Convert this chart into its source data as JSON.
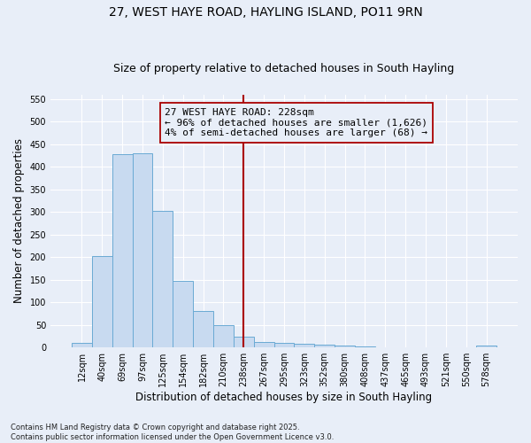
{
  "title1": "27, WEST HAYE ROAD, HAYLING ISLAND, PO11 9RN",
  "title2": "Size of property relative to detached houses in South Hayling",
  "xlabel": "Distribution of detached houses by size in South Hayling",
  "ylabel": "Number of detached properties",
  "categories": [
    "12sqm",
    "40sqm",
    "69sqm",
    "97sqm",
    "125sqm",
    "154sqm",
    "182sqm",
    "210sqm",
    "238sqm",
    "267sqm",
    "295sqm",
    "323sqm",
    "352sqm",
    "380sqm",
    "408sqm",
    "437sqm",
    "465sqm",
    "493sqm",
    "521sqm",
    "550sqm",
    "578sqm"
  ],
  "values": [
    10,
    203,
    428,
    430,
    302,
    147,
    81,
    50,
    24,
    13,
    10,
    8,
    7,
    5,
    3,
    0,
    0,
    0,
    0,
    0,
    5
  ],
  "bar_color": "#c8daf0",
  "bar_edge_color": "#6aaad4",
  "vline_color": "#aa0000",
  "annotation_line1": "27 WEST HAYE ROAD: 228sqm",
  "annotation_line2": "← 96% of detached houses are smaller (1,626)",
  "annotation_line3": "4% of semi-detached houses are larger (68) →",
  "annotation_box_edge_color": "#aa0000",
  "ylim": [
    0,
    560
  ],
  "yticks": [
    0,
    50,
    100,
    150,
    200,
    250,
    300,
    350,
    400,
    450,
    500,
    550
  ],
  "footnote": "Contains HM Land Registry data © Crown copyright and database right 2025.\nContains public sector information licensed under the Open Government Licence v3.0.",
  "bg_color": "#e8eef8",
  "grid_color": "#ffffff",
  "title_fontsize": 10,
  "subtitle_fontsize": 9,
  "tick_fontsize": 7,
  "label_fontsize": 8.5,
  "annot_fontsize": 8,
  "footnote_fontsize": 6
}
